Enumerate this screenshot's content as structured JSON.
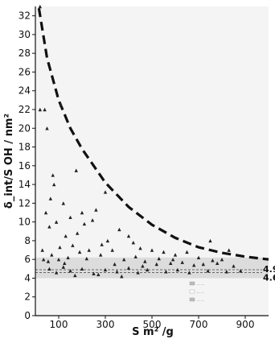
{
  "chart_data": {
    "type": "scatter",
    "title": "",
    "xlabel": "S m² /g",
    "ylabel": "δ_int/S  OH / nm²",
    "xlim": [
      0,
      1000
    ],
    "ylim": [
      0,
      33
    ],
    "x_ticks": [
      "100",
      "300",
      "500",
      "700",
      "900"
    ],
    "x_tick_values": [
      100,
      300,
      500,
      700,
      900
    ],
    "y_ticks": [
      "0",
      "2",
      "4",
      "6",
      "8",
      "10",
      "12",
      "14",
      "16",
      "18",
      "20",
      "22",
      "24",
      "26",
      "28",
      "30",
      "32"
    ],
    "y_tick_values": [
      0,
      2,
      4,
      6,
      8,
      10,
      12,
      14,
      16,
      18,
      20,
      22,
      24,
      26,
      28,
      30,
      32
    ],
    "grid": false,
    "legend_position": "lower-right",
    "legend_entries": [
      "... ...",
      "... ...",
      "... ..."
    ],
    "reference_lines": [
      {
        "label": "4.9",
        "y": 4.9
      },
      {
        "label": "4.6",
        "y": 4.6
      }
    ],
    "envelope_curve": [
      {
        "x": 15,
        "y": 32.8
      },
      {
        "x": 50,
        "y": 27.5
      },
      {
        "x": 100,
        "y": 23.0
      },
      {
        "x": 150,
        "y": 20.0
      },
      {
        "x": 200,
        "y": 17.8
      },
      {
        "x": 300,
        "y": 14.2
      },
      {
        "x": 400,
        "y": 11.6
      },
      {
        "x": 500,
        "y": 9.7
      },
      {
        "x": 600,
        "y": 8.3
      },
      {
        "x": 700,
        "y": 7.3
      },
      {
        "x": 800,
        "y": 6.7
      },
      {
        "x": 900,
        "y": 6.3
      },
      {
        "x": 1000,
        "y": 6.0
      }
    ],
    "series": [
      {
        "points": [
          {
            "x": 20,
            "y": 33.0
          },
          {
            "x": 20,
            "y": 22.0
          },
          {
            "x": 40,
            "y": 22.0
          },
          {
            "x": 50,
            "y": 20.0
          },
          {
            "x": 110,
            "y": 22.5
          },
          {
            "x": 75,
            "y": 15.0
          },
          {
            "x": 120,
            "y": 12.0
          },
          {
            "x": 80,
            "y": 14.0
          },
          {
            "x": 45,
            "y": 11.0
          },
          {
            "x": 90,
            "y": 10.0
          },
          {
            "x": 150,
            "y": 10.5
          },
          {
            "x": 200,
            "y": 11.0
          },
          {
            "x": 245,
            "y": 10.2
          },
          {
            "x": 260,
            "y": 11.3
          },
          {
            "x": 300,
            "y": 13.2
          },
          {
            "x": 310,
            "y": 8.0
          },
          {
            "x": 60,
            "y": 9.5
          },
          {
            "x": 130,
            "y": 8.5
          },
          {
            "x": 180,
            "y": 8.8
          },
          {
            "x": 210,
            "y": 9.8
          },
          {
            "x": 360,
            "y": 9.2
          },
          {
            "x": 400,
            "y": 8.5
          },
          {
            "x": 420,
            "y": 7.8
          },
          {
            "x": 450,
            "y": 7.2
          },
          {
            "x": 500,
            "y": 7.0
          },
          {
            "x": 550,
            "y": 6.8
          },
          {
            "x": 600,
            "y": 6.5
          },
          {
            "x": 650,
            "y": 6.8
          },
          {
            "x": 700,
            "y": 6.2
          },
          {
            "x": 750,
            "y": 8.0
          },
          {
            "x": 800,
            "y": 6.0
          },
          {
            "x": 830,
            "y": 7.0
          },
          {
            "x": 30,
            "y": 7.0
          },
          {
            "x": 35,
            "y": 6.0
          },
          {
            "x": 55,
            "y": 5.8
          },
          {
            "x": 70,
            "y": 6.5
          },
          {
            "x": 100,
            "y": 6.0
          },
          {
            "x": 140,
            "y": 6.2
          },
          {
            "x": 160,
            "y": 7.5
          },
          {
            "x": 190,
            "y": 6.8
          },
          {
            "x": 230,
            "y": 7.0
          },
          {
            "x": 280,
            "y": 6.5
          },
          {
            "x": 330,
            "y": 7.0
          },
          {
            "x": 380,
            "y": 6.0
          },
          {
            "x": 470,
            "y": 5.8
          },
          {
            "x": 520,
            "y": 5.5
          },
          {
            "x": 580,
            "y": 5.6
          },
          {
            "x": 630,
            "y": 5.7
          },
          {
            "x": 680,
            "y": 5.4
          },
          {
            "x": 720,
            "y": 5.5
          },
          {
            "x": 780,
            "y": 5.6
          },
          {
            "x": 850,
            "y": 5.3
          },
          {
            "x": 60,
            "y": 5.0
          },
          {
            "x": 90,
            "y": 4.6
          },
          {
            "x": 120,
            "y": 5.2
          },
          {
            "x": 150,
            "y": 4.8
          },
          {
            "x": 200,
            "y": 5.0
          },
          {
            "x": 250,
            "y": 4.5
          },
          {
            "x": 300,
            "y": 4.9
          },
          {
            "x": 350,
            "y": 4.7
          },
          {
            "x": 400,
            "y": 5.1
          },
          {
            "x": 440,
            "y": 4.6
          },
          {
            "x": 480,
            "y": 4.9
          },
          {
            "x": 560,
            "y": 4.7
          },
          {
            "x": 610,
            "y": 4.9
          },
          {
            "x": 660,
            "y": 4.6
          },
          {
            "x": 740,
            "y": 4.8
          },
          {
            "x": 820,
            "y": 4.7
          },
          {
            "x": 880,
            "y": 4.8
          },
          {
            "x": 170,
            "y": 4.3
          },
          {
            "x": 270,
            "y": 4.4
          },
          {
            "x": 370,
            "y": 4.2
          },
          {
            "x": 105,
            "y": 7.3
          },
          {
            "x": 220,
            "y": 6.1
          },
          {
            "x": 340,
            "y": 5.5
          },
          {
            "x": 430,
            "y": 6.3
          },
          {
            "x": 590,
            "y": 6.0
          },
          {
            "x": 760,
            "y": 5.9
          },
          {
            "x": 65,
            "y": 12.5
          },
          {
            "x": 175,
            "y": 15.5
          },
          {
            "x": 285,
            "y": 7.6
          },
          {
            "x": 125,
            "y": 5.6
          },
          {
            "x": 460,
            "y": 5.3
          },
          {
            "x": 530,
            "y": 6.1
          }
        ]
      }
    ]
  }
}
